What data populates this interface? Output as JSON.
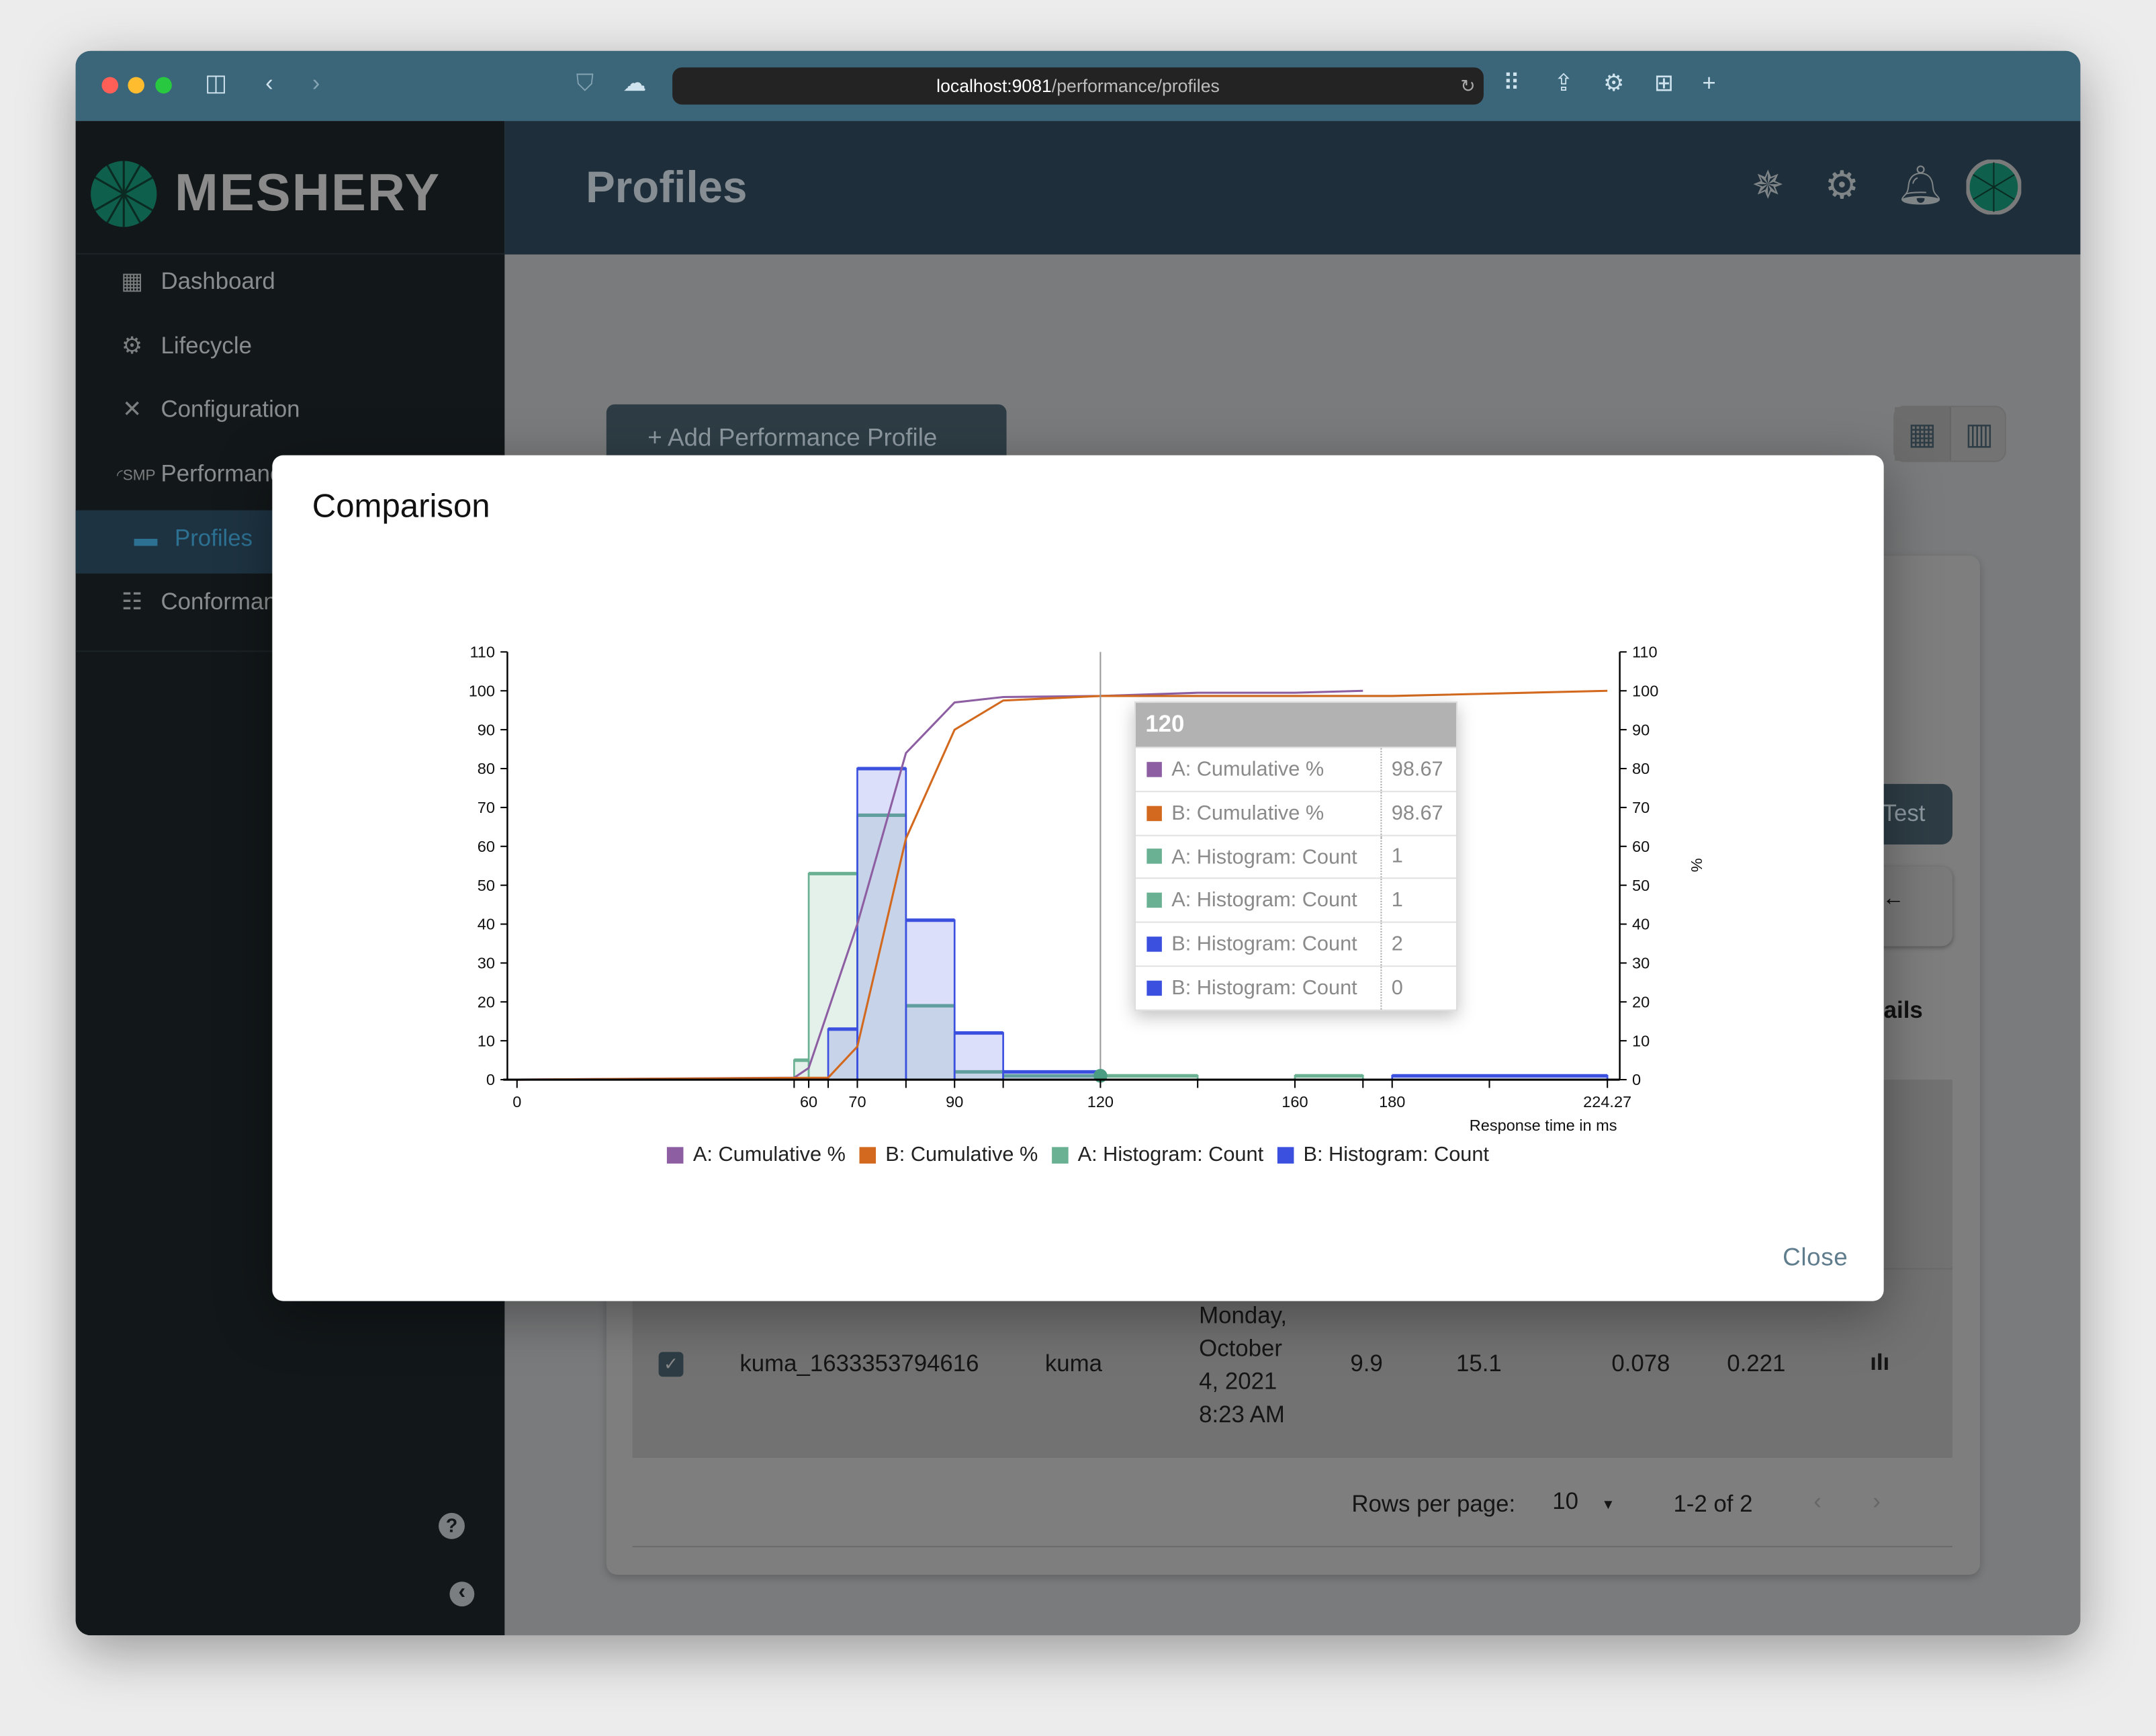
{
  "browser": {
    "url_host": "localhost:9081",
    "url_path": "/performance/profiles",
    "traffic_lights": [
      "#ff5f57",
      "#febc2e",
      "#28c840"
    ]
  },
  "brand": {
    "logo_text": "MESHERY",
    "accent": "#00b39f"
  },
  "sidebar": {
    "items": [
      {
        "label": "Dashboard",
        "icon": "dashboard-icon"
      },
      {
        "label": "Lifecycle",
        "icon": "gears-icon"
      },
      {
        "label": "Configuration",
        "icon": "tools-icon"
      },
      {
        "label": "Performance",
        "icon": "smp-gauge-icon"
      },
      {
        "label": "Profiles",
        "icon": "profile-card-icon",
        "selected": true
      },
      {
        "label": "Conformance",
        "icon": "checklist-icon"
      }
    ],
    "help_icon": "?",
    "collapse_icon": "‹"
  },
  "header": {
    "title": "Profiles"
  },
  "page": {
    "add_button": "+ Add Performance Profile",
    "test_button": "Test",
    "details_label": "ails",
    "back_arrow": "←",
    "row": {
      "name": "kuma_1633353794616",
      "mesh": "kuma",
      "date": [
        "Monday,",
        "October",
        "4, 2021",
        "8:23 AM"
      ],
      "qps": "9.9",
      "duration": "15.1",
      "p50": "0.078",
      "p99": "0.221",
      "checked": true
    },
    "pagination": {
      "rows_label": "Rows per page:",
      "rows_value": "10",
      "range": "1-2 of 2"
    }
  },
  "modal": {
    "title": "Comparison",
    "close_label": "Close",
    "tooltip": {
      "header": "120",
      "rows": [
        {
          "label": "A: Cumulative %",
          "value": "98.67",
          "color": "#8e5ea2"
        },
        {
          "label": "B: Cumulative %",
          "value": "98.67",
          "color": "#d2691e"
        },
        {
          "label": "A: Histogram: Count",
          "value": "1",
          "color": "#6ab092"
        },
        {
          "label": "A: Histogram: Count",
          "value": "1",
          "color": "#6ab092"
        },
        {
          "label": "B: Histogram: Count",
          "value": "2",
          "color": "#3c50e0"
        },
        {
          "label": "B: Histogram: Count",
          "value": "0",
          "color": "#3c50e0"
        }
      ]
    }
  },
  "chart_data": {
    "type": "bar+line",
    "xlabel": "Response time in ms",
    "y2label": "%",
    "xlim": [
      0,
      224.27
    ],
    "ylim": [
      0,
      110
    ],
    "y2lim": [
      0,
      110
    ],
    "x_ticks": [
      "0",
      "60",
      "70",
      "90",
      "120",
      "160",
      "180",
      "224.27"
    ],
    "x_tick_values": [
      0,
      60,
      70,
      90,
      120,
      160,
      180,
      224.27
    ],
    "x_minor_ticks": [
      57,
      64,
      80,
      100,
      140,
      174,
      200
    ],
    "y_ticks": [
      0,
      10,
      20,
      30,
      40,
      50,
      60,
      70,
      80,
      90,
      100,
      110
    ],
    "hover_x": 120,
    "legend_position": "bottom",
    "series": [
      {
        "name": "A: Cumulative %",
        "type": "line",
        "color": "#8e5ea2",
        "points": [
          [
            0,
            0
          ],
          [
            57,
            0.5
          ],
          [
            60,
            3
          ],
          [
            70,
            40
          ],
          [
            80,
            84
          ],
          [
            90,
            97
          ],
          [
            100,
            98.4
          ],
          [
            120,
            98.67
          ],
          [
            140,
            99.5
          ],
          [
            160,
            99.5
          ],
          [
            174,
            100
          ]
        ]
      },
      {
        "name": "B: Cumulative %",
        "type": "line",
        "color": "#d2691e",
        "points": [
          [
            0,
            0
          ],
          [
            64,
            0.5
          ],
          [
            70,
            8.5
          ],
          [
            80,
            62
          ],
          [
            90,
            90
          ],
          [
            100,
            97.5
          ],
          [
            120,
            98.67
          ],
          [
            180,
            98.67
          ],
          [
            224.27,
            100
          ]
        ]
      },
      {
        "name": "A: Histogram: Count",
        "type": "bar",
        "color": "#6ab092",
        "bins": [
          [
            57,
            60,
            5
          ],
          [
            60,
            70,
            53
          ],
          [
            70,
            80,
            68
          ],
          [
            80,
            90,
            19
          ],
          [
            90,
            100,
            2
          ],
          [
            100,
            120,
            1
          ],
          [
            120,
            140,
            1
          ],
          [
            160,
            174,
            1
          ]
        ]
      },
      {
        "name": "B: Histogram: Count",
        "type": "bar",
        "color": "#3c50e0",
        "bins": [
          [
            64,
            70,
            13
          ],
          [
            70,
            80,
            80
          ],
          [
            80,
            90,
            41
          ],
          [
            90,
            100,
            12
          ],
          [
            100,
            120,
            2
          ],
          [
            180,
            224.27,
            1
          ]
        ]
      }
    ]
  }
}
